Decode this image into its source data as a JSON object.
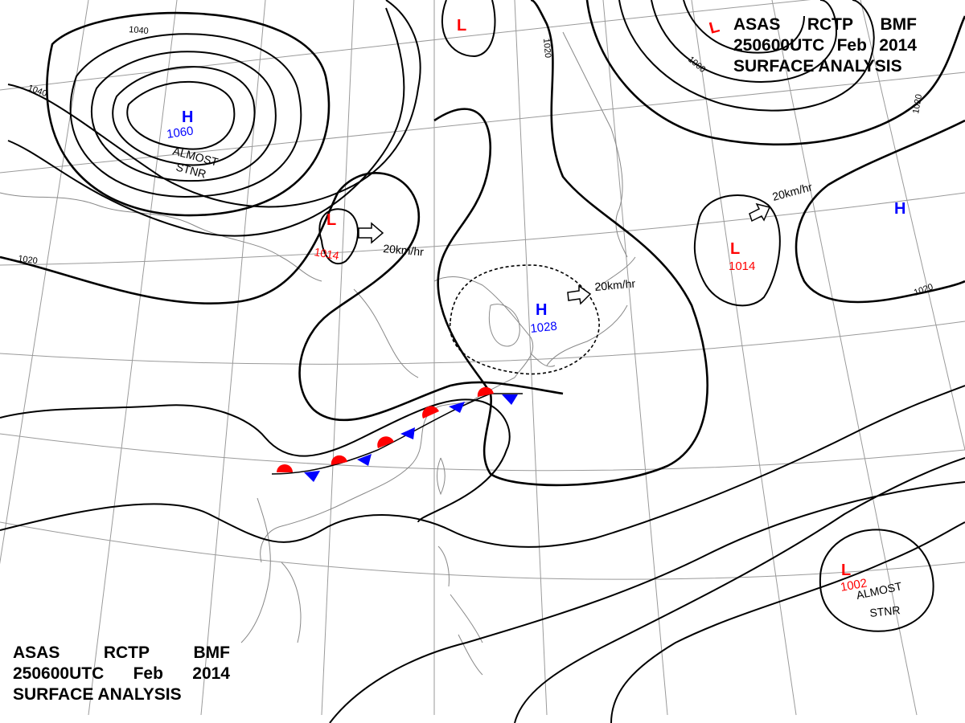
{
  "header_top": {
    "line1": [
      "ASAS",
      "RCTP",
      "BMF"
    ],
    "line2": [
      "250600UTC",
      "Feb",
      "2014"
    ],
    "line3": "SURFACE ANALYSIS"
  },
  "header_bottom": {
    "line1": [
      "ASAS",
      "RCTP",
      "BMF"
    ],
    "line2": [
      "250600UTC",
      "Feb",
      "2014"
    ],
    "line3": "SURFACE ANALYSIS"
  },
  "colors": {
    "high": "#0000ff",
    "low": "#ff0000",
    "line": "#000000",
    "grid": "#9a9a9a",
    "coast": "#888888"
  },
  "pressure_centers": [
    {
      "type": "H",
      "value": "1060",
      "note": [
        "ALMOST",
        "STNR"
      ]
    },
    {
      "type": "L",
      "value": "1014",
      "motion": "20km/hr"
    },
    {
      "type": "H",
      "value": "1028",
      "motion": "20km/hr"
    },
    {
      "type": "L",
      "value": "1014",
      "motion": "20km/hr"
    },
    {
      "type": "L",
      "value": "1002",
      "note": [
        "ALMOST",
        "STNR"
      ]
    },
    {
      "type": "H",
      "value": ""
    },
    {
      "type": "L",
      "value": ""
    },
    {
      "type": "L",
      "value": ""
    }
  ],
  "isobar_labels": [
    "1040",
    "1040",
    "1020",
    "1020",
    "1000",
    "1020",
    "1020"
  ],
  "front": {
    "type": "stationary"
  }
}
